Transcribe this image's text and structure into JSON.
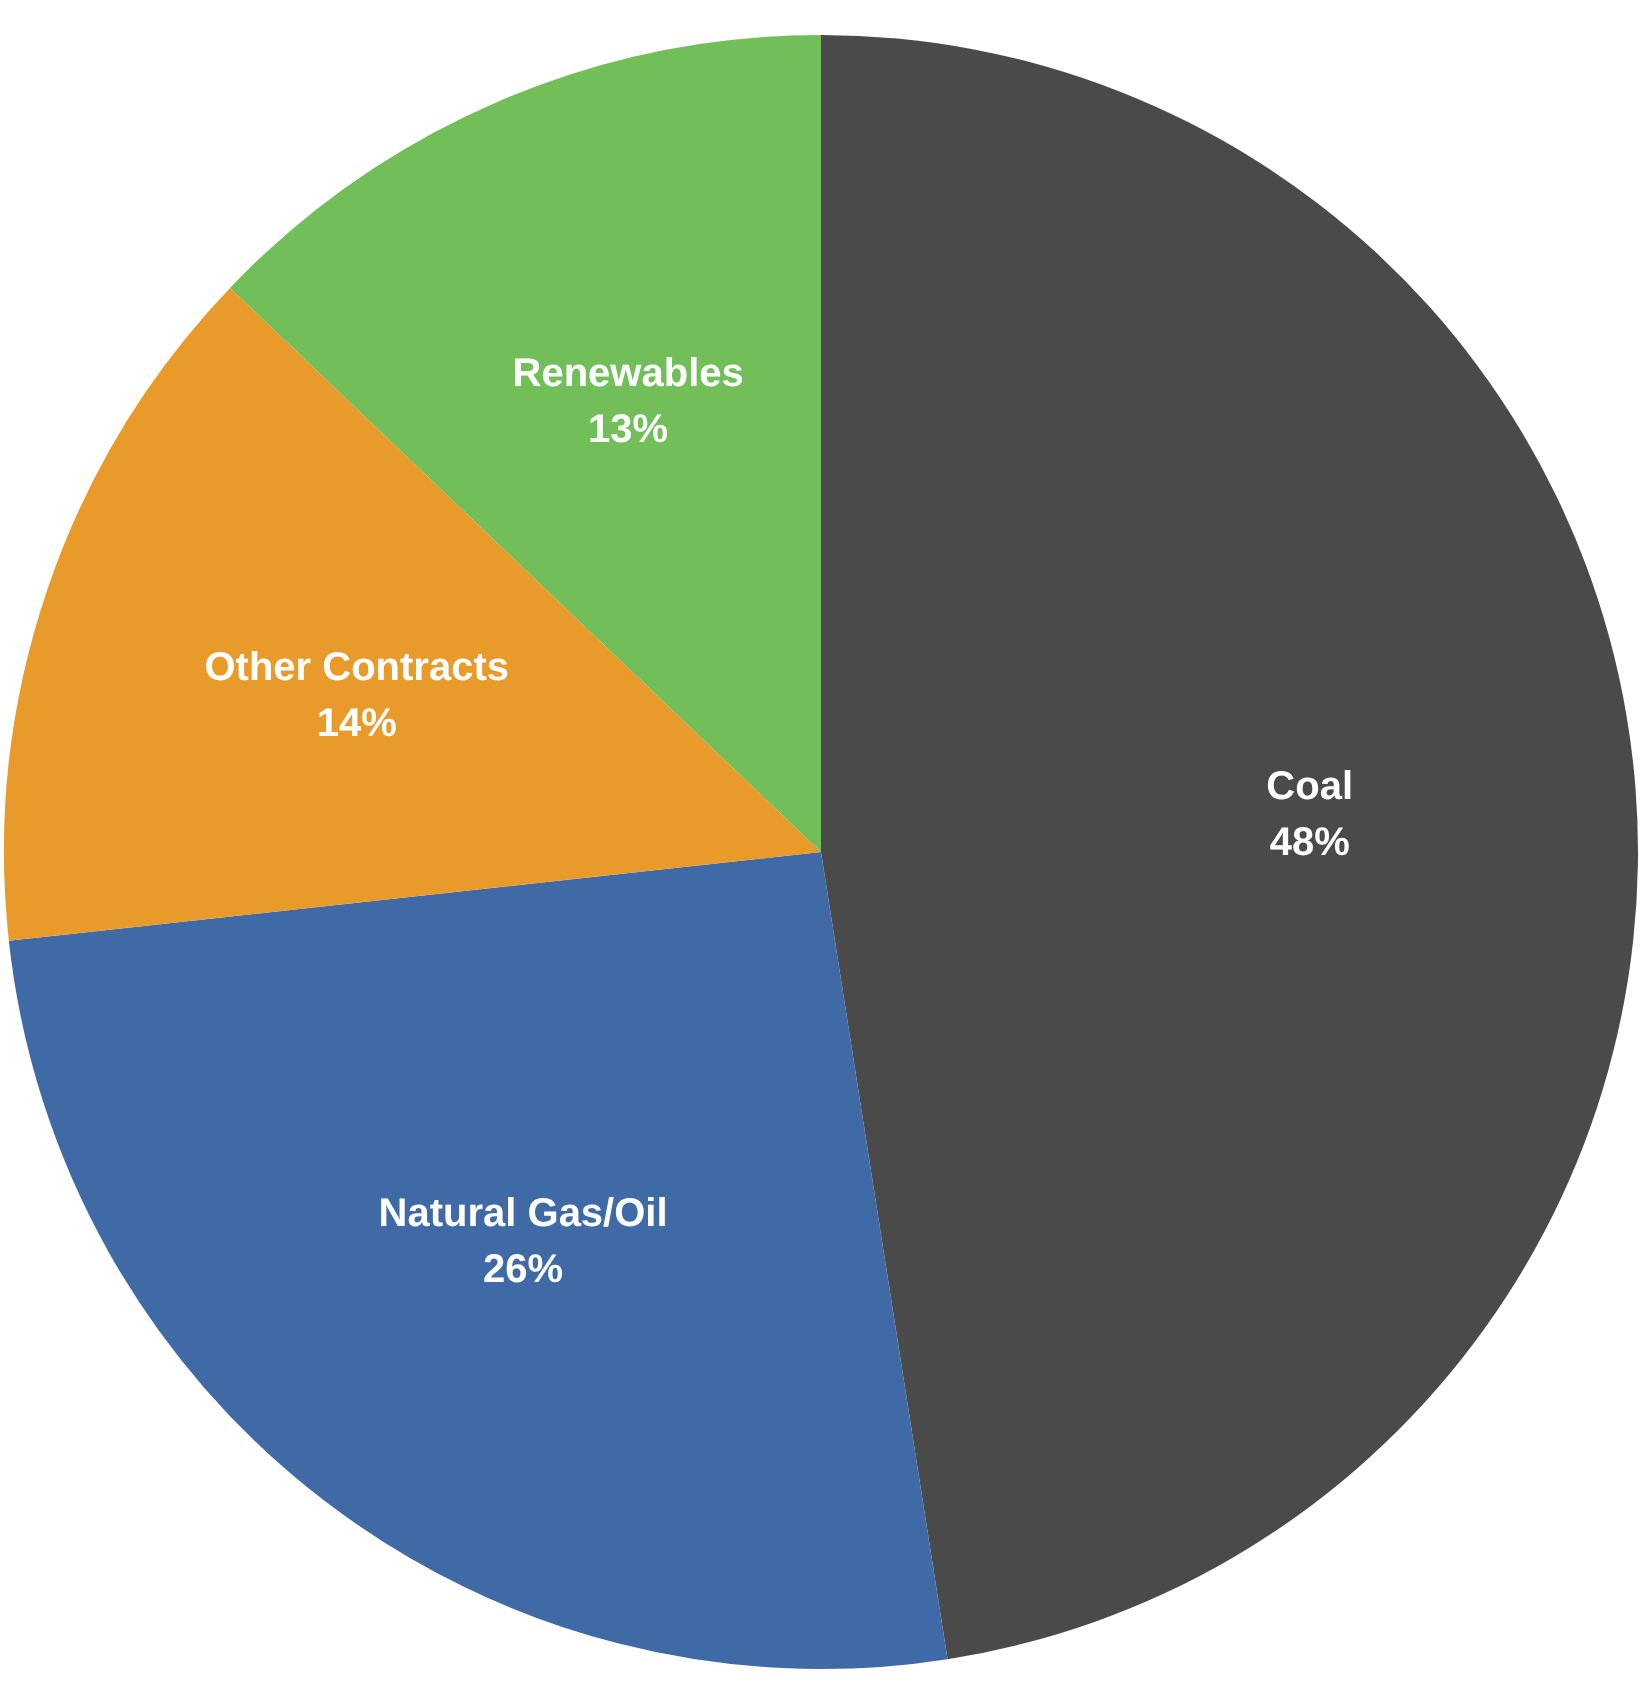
{
  "chart_data": {
    "type": "pie",
    "categories": [
      "Coal",
      "Natural Gas/Oil",
      "Other Contracts",
      "Renewables"
    ],
    "values": [
      48,
      26,
      14,
      13
    ],
    "colors": [
      "#4a4a4a",
      "#3f6aa6",
      "#e89a2a",
      "#72bf5a"
    ],
    "value_labels": [
      "48%",
      "26%",
      "14%",
      "13%"
    ],
    "legend": false
  }
}
